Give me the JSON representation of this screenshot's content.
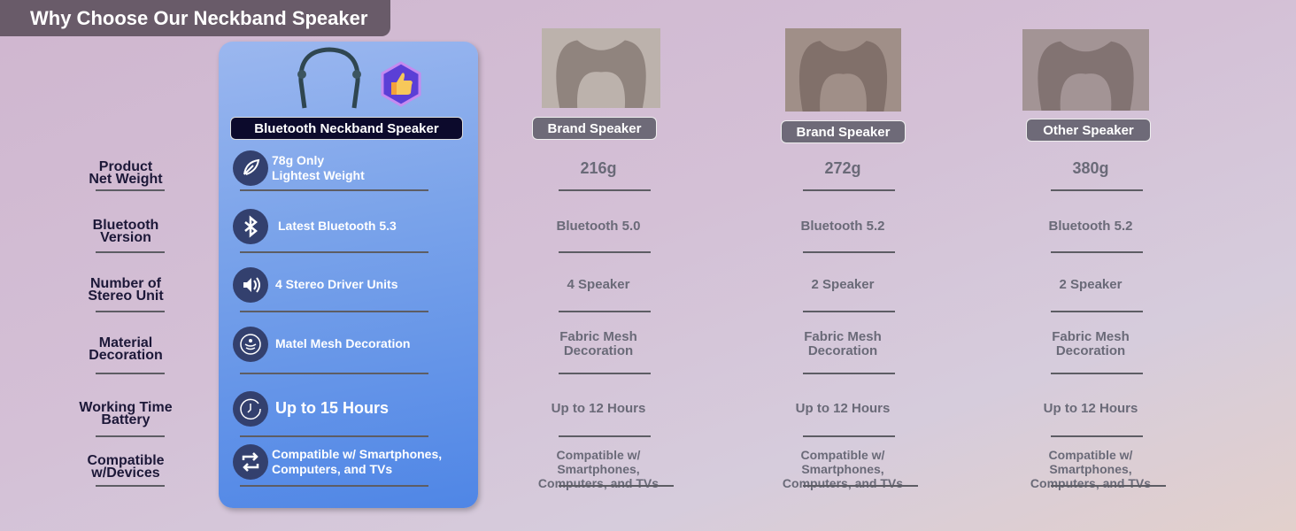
{
  "title": "Why Choose Our  Neckband Speaker",
  "row_labels": [
    [
      "Product",
      "Net Weight"
    ],
    [
      "Bluetooth",
      "Version"
    ],
    [
      "Number of",
      "Stereo Unit"
    ],
    [
      "Material",
      "Decoration"
    ],
    [
      "Working Time",
      "Battery"
    ],
    [
      "Compatible",
      "w/Devices"
    ]
  ],
  "featured": {
    "name": "Bluetooth Neckband Speaker",
    "badge_icon": "thumbs-up-badge-icon",
    "accent": "#4f86e6",
    "rows": [
      {
        "icon": "feather-icon",
        "line1": "78g Only",
        "line2": "Lightest Weight"
      },
      {
        "icon": "bluetooth-icon",
        "line1": "Latest Bluetooth 5.3",
        "line2": ""
      },
      {
        "icon": "speaker-icon",
        "line1": "4 Stereo Driver Units",
        "line2": ""
      },
      {
        "icon": "mesh-icon",
        "line1": "Matel Mesh Decoration",
        "line2": ""
      },
      {
        "icon": "clock-icon",
        "line1": "Up to 15 Hours",
        "line2": ""
      },
      {
        "icon": "sync-icon",
        "line1": "Compatible w/ Smartphones,",
        "line2": "Computers, and TVs"
      }
    ]
  },
  "competitors": [
    {
      "name": "Brand Speaker",
      "values": [
        "216g",
        "Bluetooth 5.0",
        "4 Speaker",
        "Fabric Mesh\nDecoration",
        "Up to 12 Hours",
        "Compatible w/ Smartphones,\nComputers, and TVs"
      ]
    },
    {
      "name": "Brand Speaker",
      "values": [
        "272g",
        "Bluetooth 5.2",
        "2 Speaker",
        "Fabric Mesh\nDecoration",
        "Up to 12 Hours",
        "Compatible w/ Smartphones,\nComputers, and TVs"
      ]
    },
    {
      "name": "Other Speaker",
      "values": [
        "380g",
        "Bluetooth 5.2",
        "2 Speaker",
        "Fabric Mesh\nDecoration",
        "Up to 12 Hours",
        "Compatible w/ Smartphones,\nComputers, and TVs"
      ]
    }
  ]
}
